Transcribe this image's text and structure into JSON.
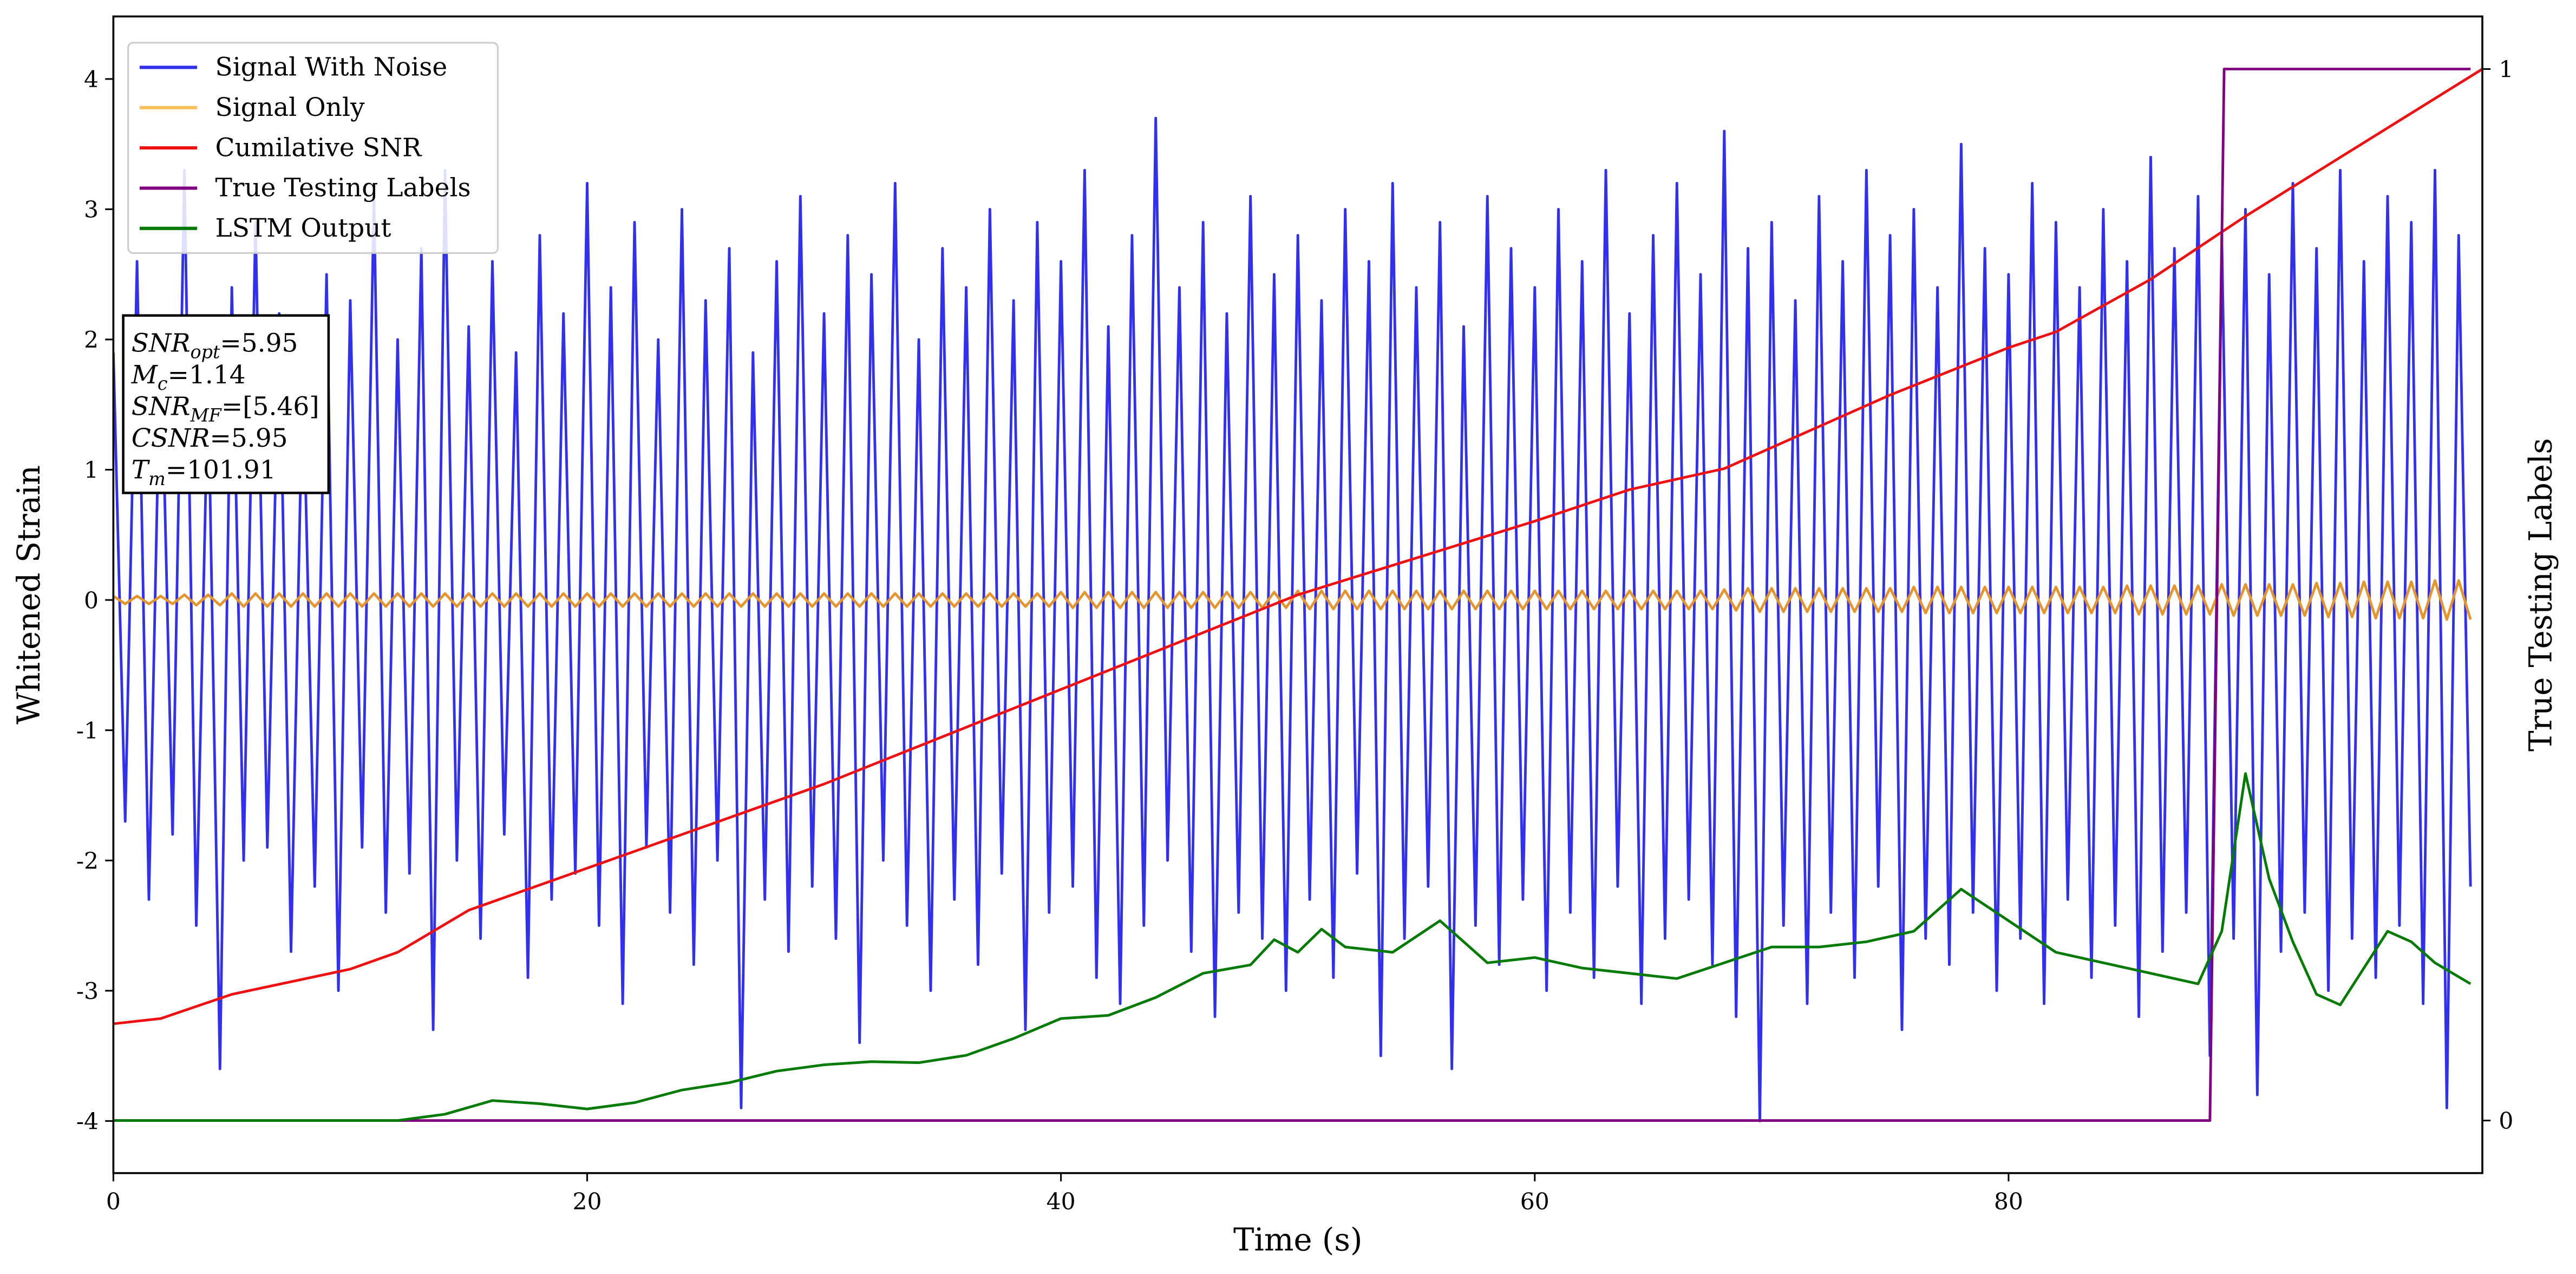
{
  "chart_data": {
    "type": "line",
    "xlabel": "Time (s)",
    "ylabel": "Whitened Strain",
    "y2label": "True Testing Labels",
    "xlim": [
      0,
      100
    ],
    "ylim": [
      -4.4,
      4.48
    ],
    "y2lim": [
      -0.05,
      1.05
    ],
    "xticks": [
      0,
      20,
      40,
      60,
      80
    ],
    "yticks": [
      -4,
      -3,
      -2,
      -1,
      0,
      1,
      2,
      3,
      4
    ],
    "y2ticks": [
      0,
      1
    ],
    "legend": "upper left",
    "annotation": [
      {
        "main": "SNR",
        "sub": "opt",
        "rest": "=5.95"
      },
      {
        "main": "M",
        "sub": "c",
        "rest": "=1.14"
      },
      {
        "main": "SNR",
        "sub": "MF",
        "rest": "=[5.46]"
      },
      {
        "main": "CSNR",
        "sub": null,
        "rest": "=5.95"
      },
      {
        "main": "T",
        "sub": "m",
        "rest": "=101.91"
      }
    ],
    "series": [
      {
        "name": "Signal With Noise",
        "color": "#3030ee",
        "axis": "y",
        "x": [
          0,
          0.5,
          1,
          1.5,
          2,
          2.5,
          3,
          3.5,
          4,
          4.5,
          5,
          5.5,
          6,
          6.5,
          7,
          7.5,
          8,
          8.5,
          9,
          9.5,
          10,
          10.5,
          11,
          11.5,
          12,
          12.5,
          13,
          13.5,
          14,
          14.5,
          15,
          15.5,
          16,
          16.5,
          17,
          17.5,
          18,
          18.5,
          19,
          19.5,
          20,
          20.5,
          21,
          21.5,
          22,
          22.5,
          23,
          23.5,
          24,
          24.5,
          25,
          25.5,
          26,
          26.5,
          27,
          27.5,
          28,
          28.5,
          29,
          29.5,
          30,
          30.5,
          31,
          31.5,
          32,
          32.5,
          33,
          33.5,
          34,
          34.5,
          35,
          35.5,
          36,
          36.5,
          37,
          37.5,
          38,
          38.5,
          39,
          39.5,
          40,
          40.5,
          41,
          41.5,
          42,
          42.5,
          43,
          43.5,
          44,
          44.5,
          45,
          45.5,
          46,
          46.5,
          47,
          47.5,
          48,
          48.5,
          49,
          49.5,
          50,
          50.5,
          51,
          51.5,
          52,
          52.5,
          53,
          53.5,
          54,
          54.5,
          55,
          55.5,
          56,
          56.5,
          57,
          57.5,
          58,
          58.5,
          59,
          59.5,
          60,
          60.5,
          61,
          61.5,
          62,
          62.5,
          63,
          63.5,
          64,
          64.5,
          65,
          65.5,
          66,
          66.5,
          67,
          67.5,
          68,
          68.5,
          69,
          69.5,
          70,
          70.5,
          71,
          71.5,
          72,
          72.5,
          73,
          73.5,
          74,
          74.5,
          75,
          75.5,
          76,
          76.5,
          77,
          77.5,
          78,
          78.5,
          79,
          79.5,
          80,
          80.5,
          81,
          81.5,
          82,
          82.5,
          83,
          83.5,
          84,
          84.5,
          85,
          85.5,
          86,
          86.5,
          87,
          87.5,
          88,
          88.5,
          89,
          89.5,
          90,
          90.5,
          91,
          91.5,
          92,
          92.5,
          93,
          93.5,
          94,
          94.5,
          95,
          95.5,
          96,
          96.5,
          97,
          97.5,
          98,
          98.5,
          99,
          99.5
        ],
        "values": [
          1.9,
          -1.7,
          2.6,
          -2.3,
          2.1,
          -1.8,
          3.3,
          -2.5,
          1.7,
          -3.6,
          2.4,
          -2.0,
          2.9,
          -1.9,
          2.2,
          -2.7,
          1.8,
          -2.2,
          2.5,
          -3.0,
          2.3,
          -1.9,
          3.1,
          -2.4,
          2.0,
          -2.1,
          2.7,
          -3.3,
          3.3,
          -2.0,
          2.1,
          -2.6,
          2.6,
          -1.8,
          1.9,
          -2.9,
          2.8,
          -2.3,
          2.2,
          -2.1,
          3.2,
          -2.5,
          2.4,
          -3.1,
          2.9,
          -1.9,
          2.0,
          -2.4,
          3.0,
          -2.8,
          2.3,
          -2.0,
          2.7,
          -3.9,
          1.9,
          -2.3,
          2.6,
          -2.7,
          3.1,
          -2.2,
          2.2,
          -2.6,
          2.8,
          -3.4,
          2.5,
          -2.0,
          3.2,
          -2.5,
          2.0,
          -3.0,
          2.7,
          -2.3,
          2.4,
          -2.8,
          3.0,
          -2.1,
          2.3,
          -3.3,
          2.9,
          -2.4,
          2.6,
          -2.2,
          3.3,
          -2.9,
          2.1,
          -3.1,
          2.8,
          -2.5,
          3.7,
          -2.0,
          2.4,
          -2.7,
          2.9,
          -3.2,
          2.2,
          -2.4,
          3.1,
          -2.6,
          2.5,
          -3.0,
          2.8,
          -2.3,
          2.3,
          -2.9,
          3.0,
          -2.1,
          2.6,
          -3.5,
          3.2,
          -2.6,
          2.4,
          -2.2,
          2.9,
          -3.6,
          2.1,
          -2.5,
          3.1,
          -2.8,
          2.7,
          -2.3,
          2.4,
          -3.0,
          3.0,
          -2.4,
          2.6,
          -2.9,
          3.3,
          -2.2,
          2.2,
          -3.1,
          2.8,
          -2.6,
          3.2,
          -2.3,
          2.5,
          -2.8,
          3.6,
          -3.2,
          2.7,
          -4.0,
          2.9,
          -2.5,
          2.3,
          -3.1,
          3.1,
          -2.4,
          2.6,
          -2.9,
          3.3,
          -2.2,
          2.8,
          -3.3,
          3.0,
          -2.6,
          2.4,
          -2.8,
          3.5,
          -2.4,
          2.7,
          -3.0,
          2.5,
          -2.6,
          3.2,
          -3.1,
          2.9,
          -2.3,
          2.4,
          -2.9,
          3.0,
          -2.5,
          2.6,
          -3.2,
          3.4,
          -2.7,
          2.7,
          -2.4,
          3.1,
          -3.5,
          2.8,
          -2.6,
          3.0,
          -3.8,
          2.5,
          -2.7,
          3.2,
          -2.4,
          2.7,
          -3.0,
          3.3,
          -2.6,
          2.6,
          -2.9,
          3.1,
          -2.5,
          2.9,
          -3.1,
          3.3,
          -3.9,
          2.8,
          -2.2
        ]
      },
      {
        "name": "Signal Only",
        "color": "#e3962e",
        "legend_color": "#fbc05a",
        "axis": "y",
        "x": [
          0,
          0.5,
          1,
          1.5,
          2,
          2.5,
          3,
          3.5,
          4,
          4.5,
          5,
          5.5,
          6,
          6.5,
          7,
          7.5,
          8,
          8.5,
          9,
          9.5,
          10,
          10.5,
          11,
          11.5,
          12,
          12.5,
          13,
          13.5,
          14,
          14.5,
          15,
          15.5,
          16,
          16.5,
          17,
          17.5,
          18,
          18.5,
          19,
          19.5,
          20,
          20.5,
          21,
          21.5,
          22,
          22.5,
          23,
          23.5,
          24,
          24.5,
          25,
          25.5,
          26,
          26.5,
          27,
          27.5,
          28,
          28.5,
          29,
          29.5,
          30,
          30.5,
          31,
          31.5,
          32,
          32.5,
          33,
          33.5,
          34,
          34.5,
          35,
          35.5,
          36,
          36.5,
          37,
          37.5,
          38,
          38.5,
          39,
          39.5,
          40,
          40.5,
          41,
          41.5,
          42,
          42.5,
          43,
          43.5,
          44,
          44.5,
          45,
          45.5,
          46,
          46.5,
          47,
          47.5,
          48,
          48.5,
          49,
          49.5,
          50,
          50.5,
          51,
          51.5,
          52,
          52.5,
          53,
          53.5,
          54,
          54.5,
          55,
          55.5,
          56,
          56.5,
          57,
          57.5,
          58,
          58.5,
          59,
          59.5,
          60,
          60.5,
          61,
          61.5,
          62,
          62.5,
          63,
          63.5,
          64,
          64.5,
          65,
          65.5,
          66,
          66.5,
          67,
          67.5,
          68,
          68.5,
          69,
          69.5,
          70,
          70.5,
          71,
          71.5,
          72,
          72.5,
          73,
          73.5,
          74,
          74.5,
          75,
          75.5,
          76,
          76.5,
          77,
          77.5,
          78,
          78.5,
          79,
          79.5,
          80,
          80.5,
          81,
          81.5,
          82,
          82.5,
          83,
          83.5,
          84,
          84.5,
          85,
          85.5,
          86,
          86.5,
          87,
          87.5,
          88,
          88.5,
          89,
          89.5,
          90,
          90.5,
          91,
          91.5,
          92,
          92.5,
          93,
          93.5,
          94,
          94.5,
          95,
          95.5,
          96,
          96.5,
          97,
          97.5,
          98,
          98.5,
          99,
          99.5
        ],
        "values": [
          0.03,
          -0.03,
          0.03,
          -0.03,
          0.03,
          -0.03,
          0.04,
          -0.04,
          0.04,
          -0.04,
          0.05,
          -0.05,
          0.05,
          -0.05,
          0.05,
          -0.05,
          0.05,
          -0.05,
          0.05,
          -0.05,
          0.05,
          -0.05,
          0.05,
          -0.05,
          0.05,
          -0.05,
          0.05,
          -0.05,
          0.05,
          -0.05,
          0.05,
          -0.05,
          0.05,
          -0.05,
          0.05,
          -0.05,
          0.05,
          -0.05,
          0.05,
          -0.05,
          0.05,
          -0.05,
          0.05,
          -0.05,
          0.05,
          -0.05,
          0.05,
          -0.05,
          0.05,
          -0.05,
          0.05,
          -0.05,
          0.05,
          -0.05,
          0.05,
          -0.05,
          0.05,
          -0.05,
          0.05,
          -0.05,
          0.05,
          -0.05,
          0.05,
          -0.05,
          0.05,
          -0.05,
          0.05,
          -0.05,
          0.05,
          -0.05,
          0.05,
          -0.05,
          0.05,
          -0.05,
          0.05,
          -0.05,
          0.05,
          -0.05,
          0.05,
          -0.05,
          0.06,
          -0.06,
          0.06,
          -0.06,
          0.06,
          -0.06,
          0.06,
          -0.06,
          0.06,
          -0.06,
          0.06,
          -0.06,
          0.06,
          -0.06,
          0.06,
          -0.06,
          0.06,
          -0.06,
          0.06,
          -0.06,
          0.07,
          -0.07,
          0.07,
          -0.07,
          0.07,
          -0.07,
          0.07,
          -0.07,
          0.07,
          -0.07,
          0.07,
          -0.07,
          0.07,
          -0.07,
          0.07,
          -0.07,
          0.07,
          -0.07,
          0.07,
          -0.07,
          0.07,
          -0.07,
          0.07,
          -0.07,
          0.07,
          -0.07,
          0.07,
          -0.07,
          0.07,
          -0.07,
          0.07,
          -0.07,
          0.07,
          -0.07,
          0.07,
          -0.07,
          0.08,
          -0.08,
          0.09,
          -0.09,
          0.09,
          -0.09,
          0.09,
          -0.09,
          0.09,
          -0.09,
          0.09,
          -0.09,
          0.09,
          -0.09,
          0.09,
          -0.09,
          0.1,
          -0.1,
          0.1,
          -0.1,
          0.1,
          -0.1,
          0.1,
          -0.1,
          0.1,
          -0.1,
          0.1,
          -0.1,
          0.1,
          -0.1,
          0.1,
          -0.1,
          0.1,
          -0.1,
          0.11,
          -0.11,
          0.11,
          -0.11,
          0.11,
          -0.11,
          0.11,
          -0.11,
          0.12,
          -0.12,
          0.12,
          -0.12,
          0.12,
          -0.12,
          0.12,
          -0.12,
          0.13,
          -0.13,
          0.13,
          -0.13,
          0.14,
          -0.14,
          0.14,
          -0.14,
          0.14,
          -0.14,
          0.15,
          -0.15,
          0.15,
          -0.15
        ]
      },
      {
        "name": "Cumilative SNR",
        "color": "#ee1111",
        "axis": "y2",
        "x": [
          0,
          2,
          5,
          10,
          12,
          15,
          20,
          25,
          30,
          35,
          40,
          45,
          50,
          55,
          60,
          64,
          68,
          72,
          75,
          80,
          82,
          86,
          90,
          95,
          100
        ],
        "values": [
          0.092,
          0.097,
          0.12,
          0.144,
          0.16,
          0.2,
          0.24,
          0.28,
          0.32,
          0.365,
          0.41,
          0.455,
          0.5,
          0.535,
          0.57,
          0.6,
          0.62,
          0.66,
          0.69,
          0.735,
          0.75,
          0.8,
          0.86,
          0.93,
          1.0
        ]
      },
      {
        "name": "True Testing Labels",
        "color": "#800080",
        "axis": "y2",
        "x": [
          0,
          88.5,
          89.1,
          99.5
        ],
        "values": [
          0,
          0,
          1,
          1
        ]
      },
      {
        "name": "LSTM Output",
        "color": "#007a00",
        "axis": "y2",
        "x": [
          0,
          12,
          14,
          16,
          18,
          20,
          22,
          24,
          26,
          28,
          30,
          32,
          34,
          36,
          38,
          40,
          42,
          44,
          46,
          48,
          49,
          50,
          51,
          52,
          54,
          56,
          58,
          60,
          62,
          64,
          66,
          68,
          70,
          72,
          74,
          76,
          78,
          80,
          82,
          84,
          86,
          88,
          89,
          90,
          91,
          92,
          93,
          94,
          95,
          96,
          97,
          98,
          99.5
        ],
        "values": [
          0,
          0,
          0.006,
          0.019,
          0.016,
          0.011,
          0.017,
          0.029,
          0.036,
          0.047,
          0.053,
          0.056,
          0.055,
          0.062,
          0.078,
          0.097,
          0.1,
          0.117,
          0.14,
          0.148,
          0.172,
          0.16,
          0.182,
          0.165,
          0.16,
          0.19,
          0.15,
          0.155,
          0.145,
          0.14,
          0.135,
          0.15,
          0.165,
          0.165,
          0.17,
          0.18,
          0.22,
          0.19,
          0.16,
          0.15,
          0.14,
          0.13,
          0.18,
          0.33,
          0.23,
          0.17,
          0.12,
          0.11,
          0.145,
          0.18,
          0.17,
          0.15,
          0.13
        ]
      }
    ]
  }
}
